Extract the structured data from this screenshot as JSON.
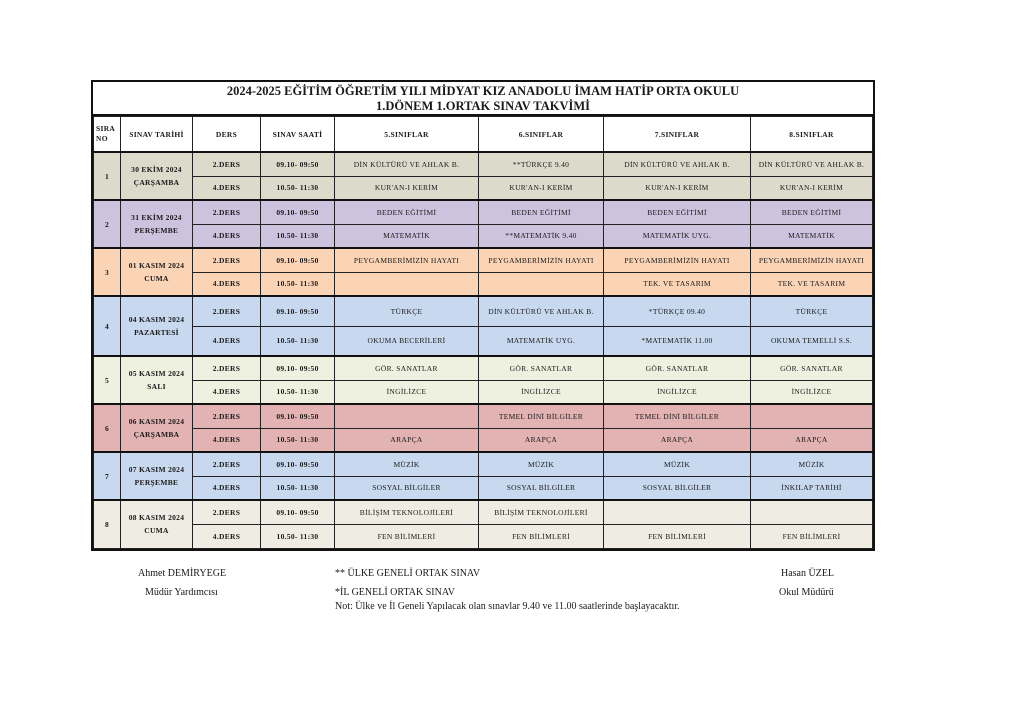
{
  "title": {
    "line1": "2024-2025 EĞİTİM ÖĞRETİM YILI MİDYAT  KIZ ANADOLU İMAM HATİP ORTA OKULU",
    "line2": "1.DÖNEM 1.ORTAK SINAV TAKVİMİ"
  },
  "headers": [
    "SIRA NO",
    "SINAV TARİHİ",
    "DERS",
    "SINAV SAATİ",
    "5.SINIFLAR",
    "6.SINIFLAR",
    "7.SINIFLAR",
    "8.SINIFLAR"
  ],
  "days": [
    {
      "no": "1",
      "date": "30 EKİM 2024",
      "weekday": "ÇARŞAMBA",
      "color": "#dcdbcb",
      "rows": [
        {
          "ders": "2.DERS",
          "saat": "09.10- 09:50",
          "cells": [
            "DİN KÜLTÜRÜ VE AHLAK B.",
            "**TÜRKÇE 9.40",
            "DİN KÜLTÜRÜ VE AHLAK B.",
            "DİN KÜLTÜRÜ VE AHLAK B."
          ]
        },
        {
          "ders": "4.DERS",
          "saat": "10.50- 11:30",
          "cells": [
            "KUR'AN-I KERİM",
            "KUR'AN-I KERİM",
            "KUR'AN-I KERİM",
            "KUR'AN-I KERİM"
          ]
        }
      ]
    },
    {
      "no": "2",
      "date": "31 EKİM 2024",
      "weekday": "PERŞEMBE",
      "color": "#cec3de",
      "rows": [
        {
          "ders": "2.DERS",
          "saat": "09.10- 09:50",
          "cells": [
            "BEDEN EĞİTİMİ",
            "BEDEN EĞİTİMİ",
            "BEDEN EĞİTİMİ",
            "BEDEN EĞİTİMİ"
          ]
        },
        {
          "ders": "4.DERS",
          "saat": "10.50- 11:30",
          "cells": [
            "MATEMATİK",
            "**MATEMATİK 9.40",
            "MATEMATİK UYG.",
            "MATEMATİK"
          ]
        }
      ]
    },
    {
      "no": "3",
      "date": "01 KASIM 2024",
      "weekday": "CUMA",
      "color": "#fbd4b6",
      "rows": [
        {
          "ders": "2.DERS",
          "saat": "09.10- 09:50",
          "cells": [
            "PEYGAMBERİMİZİN HAYATI",
            "PEYGAMBERİMİZİN HAYATI",
            "PEYGAMBERİMİZİN HAYATI",
            "PEYGAMBERİMİZİN HAYATI"
          ]
        },
        {
          "ders": "4.DERS",
          "saat": "10.50- 11:30",
          "cells": [
            "",
            "",
            "TEK. VE TASARIM",
            "TEK. VE TASARIM"
          ]
        }
      ]
    },
    {
      "no": "4",
      "date": "04 KASIM 2024",
      "weekday": "PAZARTESİ",
      "color": "#c8d8ef",
      "rows": [
        {
          "ders": "2.DERS",
          "saat": "09.10- 09:50",
          "cells": [
            "TÜRKÇE",
            "DİN KÜLTÜRÜ VE AHLAK B.",
            "*TÜRKÇE 09.40",
            "TÜRKÇE"
          ]
        },
        {
          "ders": "4.DERS",
          "saat": "10.50- 11:30",
          "cells": [
            "OKUMA BECERİLERİ",
            "MATEMATİK UYG.",
            "*MATEMATİK 11.00",
            "OKUMA TEMELLİ S.S."
          ]
        }
      ]
    },
    {
      "no": "5",
      "date": "05 KASIM 2024",
      "weekday": "SALI",
      "color": "#eef0e0",
      "rows": [
        {
          "ders": "2.DERS",
          "saat": "09.10- 09:50",
          "cells": [
            "GÖR. SANATLAR",
            "GÖR. SANATLAR",
            "GÖR. SANATLAR",
            "GÖR. SANATLAR"
          ]
        },
        {
          "ders": "4.DERS",
          "saat": "10.50- 11:30",
          "cells": [
            "İNGİLİZCE",
            "İNGİLİZCE",
            "İNGİLİZCE",
            "İNGİLİZCE"
          ]
        }
      ]
    },
    {
      "no": "6",
      "date": "06 KASIM 2024",
      "weekday": "ÇARŞAMBA",
      "color": "#e3b3b3",
      "rows": [
        {
          "ders": "2.DERS",
          "saat": "09.10- 09:50",
          "cells": [
            "",
            "TEMEL DİNİ BİLGİLER",
            "TEMEL DİNİ BİLGİLER",
            ""
          ]
        },
        {
          "ders": "4.DERS",
          "saat": "10.50- 11:30",
          "cells": [
            "ARAPÇA",
            "ARAPÇA",
            "ARAPÇA",
            "ARAPÇA"
          ]
        }
      ]
    },
    {
      "no": "7",
      "date": "07 KASIM 2024",
      "weekday": "PERŞEMBE",
      "color": "#c8d8ef",
      "rows": [
        {
          "ders": "2.DERS",
          "saat": "09.10- 09:50",
          "cells": [
            "MÜZİK",
            "MÜZİK",
            "MÜZİK",
            "MÜZİK"
          ]
        },
        {
          "ders": "4.DERS",
          "saat": "10.50- 11:30",
          "cells": [
            "SOSYAL BİLGİLER",
            "SOSYAL BİLGİLER",
            "SOSYAL BİLGİLER",
            "İNKILAP TARİHİ"
          ]
        }
      ]
    },
    {
      "no": "8",
      "date": "08 KASIM 2024",
      "weekday": "CUMA",
      "color": "#efede3",
      "rows": [
        {
          "ders": "2.DERS",
          "saat": "09.10- 09:50",
          "cells": [
            "BİLİŞİM TEKNOLOJİLERİ",
            "BİLİŞİM TEKNOLOJİLERİ",
            "",
            ""
          ]
        },
        {
          "ders": "4.DERS",
          "saat": "10.50- 11:30",
          "cells": [
            "FEN BİLİMLERİ",
            "FEN BİLİMLERİ",
            "FEN BİLİMLERİ",
            "FEN BİLİMLERİ"
          ]
        }
      ]
    }
  ],
  "footer": {
    "left_name": "Ahmet DEMİRYEGE",
    "left_role": "Müdür Yardımcısı",
    "note1": "** ÜLKE GENELİ ORTAK SINAV",
    "note2": "*İL GENELİ ORTAK SINAV",
    "note3": "Not: Ülke ve İl Geneli Yapılacak olan sınavlar 9.40 ve 11.00 saatlerinde başlayacaktır.",
    "right_name": "Hasan ÜZEL",
    "right_role": "Okul Müdürü"
  }
}
